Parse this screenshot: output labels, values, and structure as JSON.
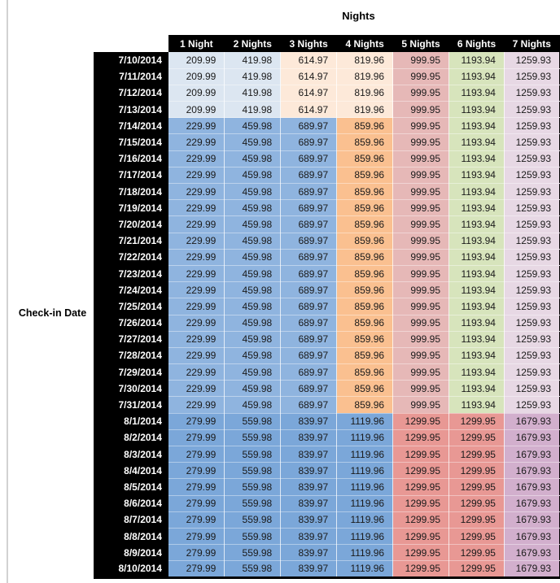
{
  "title": "Nights",
  "row_axis_label": "Check-in Date",
  "columns": [
    "1 Night",
    "2 Nights",
    "3 Nights",
    "4 Nights",
    "5 Nights",
    "6 Nights",
    "7 Nights"
  ],
  "palette": {
    "light_blue": "#DCE6F1",
    "light_orange": "#FDE9D9",
    "med_blue": "#8FB4DF",
    "med_orange": "#FAC090",
    "rose": "#E6B8B7",
    "green": "#D7E4BC",
    "lilac": "#E7D8E4",
    "aug_blue": "#7BA7D9",
    "salmon": "#E89894",
    "plum": "#D2AFCD",
    "header_bg": "#000000",
    "header_text": "#ffffff"
  },
  "groups": {
    "early_july": {
      "values": [
        "209.99",
        "419.98",
        "614.97",
        "819.96",
        "999.95",
        "1193.94",
        "1259.93"
      ],
      "colors": [
        "light_blue",
        "light_blue",
        "light_orange",
        "light_orange",
        "rose",
        "green",
        "lilac"
      ]
    },
    "mid_july": {
      "values": [
        "229.99",
        "459.98",
        "689.97",
        "859.96",
        "999.95",
        "1193.94",
        "1259.93"
      ],
      "colors": [
        "med_blue",
        "med_blue",
        "med_blue",
        "med_orange",
        "rose",
        "green",
        "lilac"
      ]
    },
    "august": {
      "values": [
        "279.99",
        "559.98",
        "839.97",
        "1119.96",
        "1299.95",
        "1299.95",
        "1679.93"
      ],
      "colors": [
        "aug_blue",
        "aug_blue",
        "aug_blue",
        "aug_blue",
        "salmon",
        "salmon",
        "plum"
      ]
    }
  },
  "rows": [
    {
      "date": "7/10/2014",
      "group": "early_july"
    },
    {
      "date": "7/11/2014",
      "group": "early_july"
    },
    {
      "date": "7/12/2014",
      "group": "early_july"
    },
    {
      "date": "7/13/2014",
      "group": "early_july"
    },
    {
      "date": "7/14/2014",
      "group": "mid_july"
    },
    {
      "date": "7/15/2014",
      "group": "mid_july"
    },
    {
      "date": "7/16/2014",
      "group": "mid_july"
    },
    {
      "date": "7/17/2014",
      "group": "mid_july"
    },
    {
      "date": "7/18/2014",
      "group": "mid_july"
    },
    {
      "date": "7/19/2014",
      "group": "mid_july"
    },
    {
      "date": "7/20/2014",
      "group": "mid_july"
    },
    {
      "date": "7/21/2014",
      "group": "mid_july"
    },
    {
      "date": "7/22/2014",
      "group": "mid_july"
    },
    {
      "date": "7/23/2014",
      "group": "mid_july"
    },
    {
      "date": "7/24/2014",
      "group": "mid_july"
    },
    {
      "date": "7/25/2014",
      "group": "mid_july"
    },
    {
      "date": "7/26/2014",
      "group": "mid_july"
    },
    {
      "date": "7/27/2014",
      "group": "mid_july"
    },
    {
      "date": "7/28/2014",
      "group": "mid_july"
    },
    {
      "date": "7/29/2014",
      "group": "mid_july"
    },
    {
      "date": "7/30/2014",
      "group": "mid_july"
    },
    {
      "date": "7/31/2014",
      "group": "mid_july"
    },
    {
      "date": "8/1/2014",
      "group": "august"
    },
    {
      "date": "8/2/2014",
      "group": "august"
    },
    {
      "date": "8/3/2014",
      "group": "august"
    },
    {
      "date": "8/4/2014",
      "group": "august"
    },
    {
      "date": "8/5/2014",
      "group": "august"
    },
    {
      "date": "8/6/2014",
      "group": "august"
    },
    {
      "date": "8/7/2014",
      "group": "august"
    },
    {
      "date": "8/8/2014",
      "group": "august"
    },
    {
      "date": "8/9/2014",
      "group": "august"
    },
    {
      "date": "8/10/2014",
      "group": "august"
    }
  ],
  "chart_data": {
    "type": "table",
    "title": "Nights",
    "row_label": "Check-in Date",
    "columns": [
      "1 Night",
      "2 Nights",
      "3 Nights",
      "4 Nights",
      "5 Nights",
      "6 Nights",
      "7 Nights"
    ],
    "rows": [
      {
        "date": "7/10/2014",
        "values": [
          209.99,
          419.98,
          614.97,
          819.96,
          999.95,
          1193.94,
          1259.93
        ]
      },
      {
        "date": "7/11/2014",
        "values": [
          209.99,
          419.98,
          614.97,
          819.96,
          999.95,
          1193.94,
          1259.93
        ]
      },
      {
        "date": "7/12/2014",
        "values": [
          209.99,
          419.98,
          614.97,
          819.96,
          999.95,
          1193.94,
          1259.93
        ]
      },
      {
        "date": "7/13/2014",
        "values": [
          209.99,
          419.98,
          614.97,
          819.96,
          999.95,
          1193.94,
          1259.93
        ]
      },
      {
        "date": "7/14/2014",
        "values": [
          229.99,
          459.98,
          689.97,
          859.96,
          999.95,
          1193.94,
          1259.93
        ]
      },
      {
        "date": "7/15/2014",
        "values": [
          229.99,
          459.98,
          689.97,
          859.96,
          999.95,
          1193.94,
          1259.93
        ]
      },
      {
        "date": "7/16/2014",
        "values": [
          229.99,
          459.98,
          689.97,
          859.96,
          999.95,
          1193.94,
          1259.93
        ]
      },
      {
        "date": "7/17/2014",
        "values": [
          229.99,
          459.98,
          689.97,
          859.96,
          999.95,
          1193.94,
          1259.93
        ]
      },
      {
        "date": "7/18/2014",
        "values": [
          229.99,
          459.98,
          689.97,
          859.96,
          999.95,
          1193.94,
          1259.93
        ]
      },
      {
        "date": "7/19/2014",
        "values": [
          229.99,
          459.98,
          689.97,
          859.96,
          999.95,
          1193.94,
          1259.93
        ]
      },
      {
        "date": "7/20/2014",
        "values": [
          229.99,
          459.98,
          689.97,
          859.96,
          999.95,
          1193.94,
          1259.93
        ]
      },
      {
        "date": "7/21/2014",
        "values": [
          229.99,
          459.98,
          689.97,
          859.96,
          999.95,
          1193.94,
          1259.93
        ]
      },
      {
        "date": "7/22/2014",
        "values": [
          229.99,
          459.98,
          689.97,
          859.96,
          999.95,
          1193.94,
          1259.93
        ]
      },
      {
        "date": "7/23/2014",
        "values": [
          229.99,
          459.98,
          689.97,
          859.96,
          999.95,
          1193.94,
          1259.93
        ]
      },
      {
        "date": "7/24/2014",
        "values": [
          229.99,
          459.98,
          689.97,
          859.96,
          999.95,
          1193.94,
          1259.93
        ]
      },
      {
        "date": "7/25/2014",
        "values": [
          229.99,
          459.98,
          689.97,
          859.96,
          999.95,
          1193.94,
          1259.93
        ]
      },
      {
        "date": "7/26/2014",
        "values": [
          229.99,
          459.98,
          689.97,
          859.96,
          999.95,
          1193.94,
          1259.93
        ]
      },
      {
        "date": "7/27/2014",
        "values": [
          229.99,
          459.98,
          689.97,
          859.96,
          999.95,
          1193.94,
          1259.93
        ]
      },
      {
        "date": "7/28/2014",
        "values": [
          229.99,
          459.98,
          689.97,
          859.96,
          999.95,
          1193.94,
          1259.93
        ]
      },
      {
        "date": "7/29/2014",
        "values": [
          229.99,
          459.98,
          689.97,
          859.96,
          999.95,
          1193.94,
          1259.93
        ]
      },
      {
        "date": "7/30/2014",
        "values": [
          229.99,
          459.98,
          689.97,
          859.96,
          999.95,
          1193.94,
          1259.93
        ]
      },
      {
        "date": "7/31/2014",
        "values": [
          229.99,
          459.98,
          689.97,
          859.96,
          999.95,
          1193.94,
          1259.93
        ]
      },
      {
        "date": "8/1/2014",
        "values": [
          279.99,
          559.98,
          839.97,
          1119.96,
          1299.95,
          1299.95,
          1679.93
        ]
      },
      {
        "date": "8/2/2014",
        "values": [
          279.99,
          559.98,
          839.97,
          1119.96,
          1299.95,
          1299.95,
          1679.93
        ]
      },
      {
        "date": "8/3/2014",
        "values": [
          279.99,
          559.98,
          839.97,
          1119.96,
          1299.95,
          1299.95,
          1679.93
        ]
      },
      {
        "date": "8/4/2014",
        "values": [
          279.99,
          559.98,
          839.97,
          1119.96,
          1299.95,
          1299.95,
          1679.93
        ]
      },
      {
        "date": "8/5/2014",
        "values": [
          279.99,
          559.98,
          839.97,
          1119.96,
          1299.95,
          1299.95,
          1679.93
        ]
      },
      {
        "date": "8/6/2014",
        "values": [
          279.99,
          559.98,
          839.97,
          1119.96,
          1299.95,
          1299.95,
          1679.93
        ]
      },
      {
        "date": "8/7/2014",
        "values": [
          279.99,
          559.98,
          839.97,
          1119.96,
          1299.95,
          1299.95,
          1679.93
        ]
      },
      {
        "date": "8/8/2014",
        "values": [
          279.99,
          559.98,
          839.97,
          1119.96,
          1299.95,
          1299.95,
          1679.93
        ]
      },
      {
        "date": "8/9/2014",
        "values": [
          279.99,
          559.98,
          839.97,
          1119.96,
          1299.95,
          1299.95,
          1679.93
        ]
      },
      {
        "date": "8/10/2014",
        "values": [
          279.99,
          559.98,
          839.97,
          1119.96,
          1299.95,
          1299.95,
          1679.93
        ]
      }
    ]
  }
}
